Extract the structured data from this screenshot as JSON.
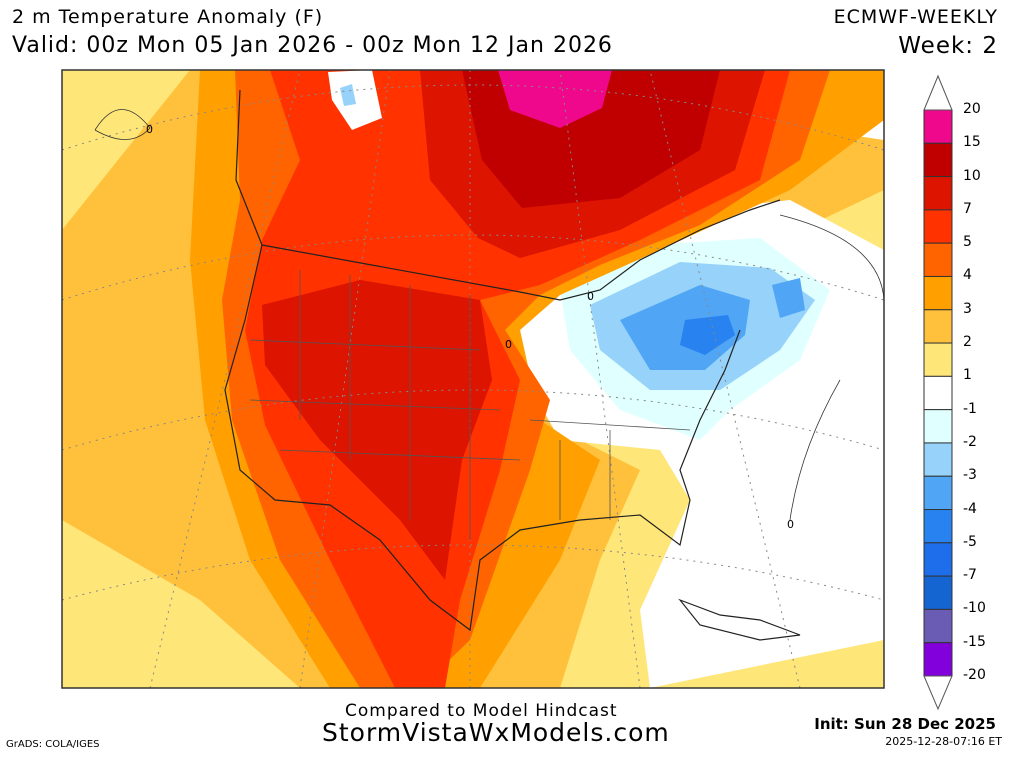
{
  "header": {
    "title": "2 m Temperature Anomaly (F)",
    "valid": "Valid: 00z Mon 05 Jan 2026 - 00z Mon 12 Jan 2026",
    "model": "ECMWF-WEEKLY",
    "week": "Week: 2"
  },
  "footer": {
    "compared": "Compared to Model Hindcast",
    "site": "StormVistaWxModels.com",
    "init": "Init: Sun 28 Dec 2025",
    "timestamp": "2025-12-28-07:16 ET",
    "credit": "GrADS: COLA/IGES"
  },
  "map": {
    "contour_labels": [
      "0",
      "0",
      "0",
      "0"
    ]
  },
  "colorbar": {
    "labels": [
      "20",
      "15",
      "10",
      "7",
      "5",
      "4",
      "3",
      "2",
      "1",
      "-1",
      "-2",
      "-3",
      "-4",
      "-5",
      "-7",
      "-10",
      "-15",
      "-20"
    ],
    "colors": [
      "#f0088c",
      "#c00000",
      "#dc1400",
      "#ff3200",
      "#ff6400",
      "#ffa000",
      "#ffc03c",
      "#ffe678",
      "#ffffff",
      "#e0ffff",
      "#96d2fa",
      "#50a5f5",
      "#2882f0",
      "#1e6eeb",
      "#1464d2",
      "#6a5cb4",
      "#8200dc"
    ]
  }
}
